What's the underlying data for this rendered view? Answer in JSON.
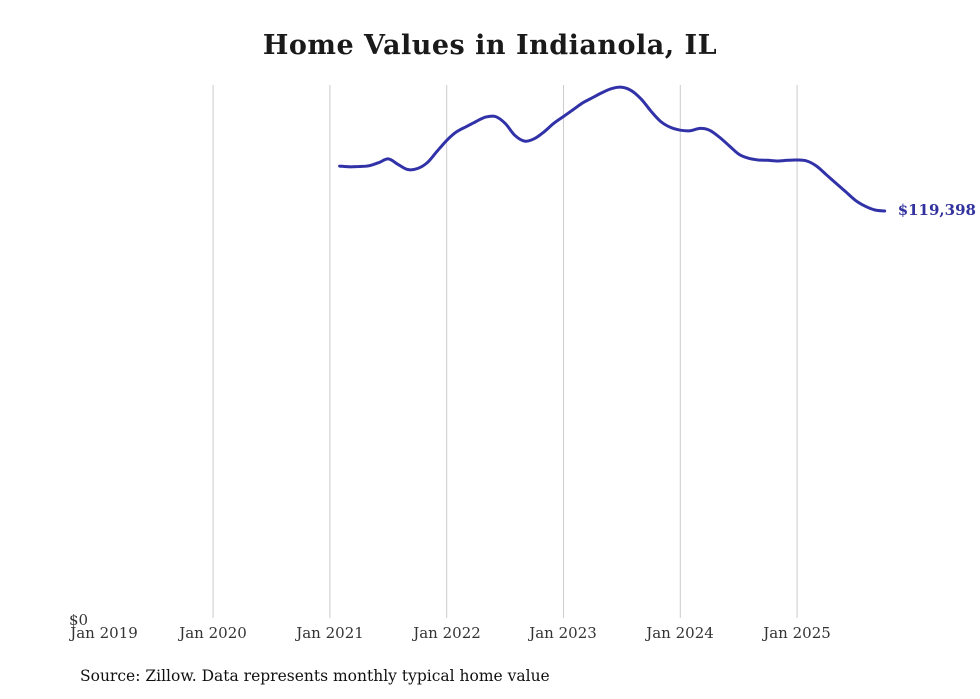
{
  "title": "Home Values in Indianola, IL",
  "source_note": "Source: Zillow. Data represents monthly typical home value",
  "y_zero_label": "$0",
  "end_label": "$119,398",
  "colors": {
    "line": "#3232a8",
    "grid": "#cccccc",
    "tick_text": "#333333",
    "end_label_text": "#32329e"
  },
  "chart_data": {
    "type": "line",
    "title": "Home Values in Indianola, IL",
    "xlabel": "",
    "ylabel": "",
    "x_ticks": [
      "Jan 2019",
      "Jan 2020",
      "Jan 2021",
      "Jan 2022",
      "Jan 2023",
      "Jan 2024",
      "Jan 2025"
    ],
    "gridlines_at_ticks": [
      1,
      2,
      3,
      4,
      5,
      6
    ],
    "ylim": [
      0,
      160000
    ],
    "grid": "vertical-only",
    "legend": "none",
    "start_month": "2021-02",
    "end_month": "2025-10",
    "final_value": 119398,
    "series": [
      {
        "name": "Typical home value (USD)",
        "monthly_values": [
          132500,
          132300,
          132400,
          132600,
          133500,
          134600,
          133000,
          131500,
          131800,
          133500,
          136800,
          140000,
          142500,
          144000,
          145500,
          146800,
          147000,
          145000,
          141500,
          139800,
          140500,
          142500,
          145000,
          147000,
          149000,
          151000,
          152500,
          154000,
          155200,
          155500,
          154500,
          152000,
          148500,
          145500,
          143800,
          143000,
          142800,
          143500,
          143000,
          141000,
          138500,
          136000,
          134800,
          134300,
          134200,
          134000,
          134200,
          134300,
          134000,
          132500,
          130000,
          127500,
          125000,
          122500,
          120800,
          119700,
          119398
        ]
      }
    ]
  }
}
